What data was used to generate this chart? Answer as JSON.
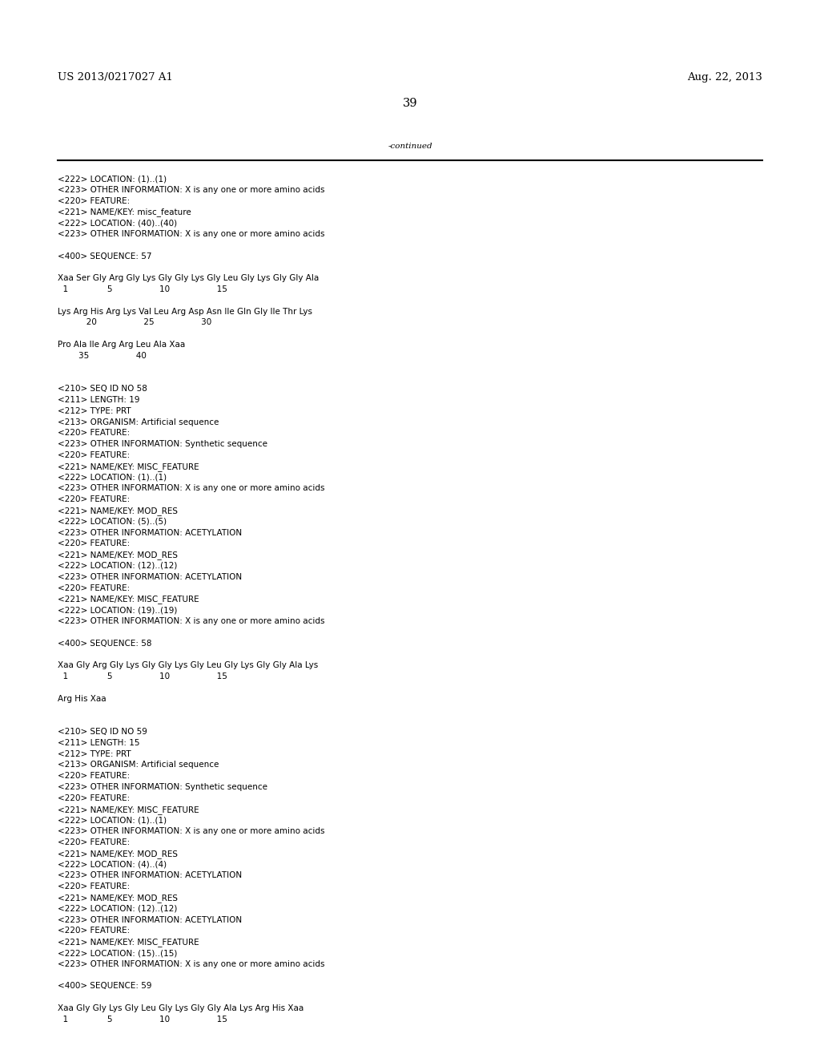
{
  "background_color": "#ffffff",
  "header_left": "US 2013/0217027 A1",
  "header_right": "Aug. 22, 2013",
  "page_number": "39",
  "continued_label": "-continued",
  "font_size_header": 9.5,
  "font_size_body": 7.5,
  "font_size_page": 10.5,
  "content_lines": [
    "<222> LOCATION: (1)..(1)",
    "<223> OTHER INFORMATION: X is any one or more amino acids",
    "<220> FEATURE:",
    "<221> NAME/KEY: misc_feature",
    "<222> LOCATION: (40)..(40)",
    "<223> OTHER INFORMATION: X is any one or more amino acids",
    "",
    "<400> SEQUENCE: 57",
    "",
    "Xaa Ser Gly Arg Gly Lys Gly Gly Lys Gly Leu Gly Lys Gly Gly Ala",
    "  1               5                  10                  15",
    "",
    "Lys Arg His Arg Lys Val Leu Arg Asp Asn Ile Gln Gly Ile Thr Lys",
    "           20                  25                  30",
    "",
    "Pro Ala Ile Arg Arg Leu Ala Xaa",
    "        35                  40",
    "",
    "",
    "<210> SEQ ID NO 58",
    "<211> LENGTH: 19",
    "<212> TYPE: PRT",
    "<213> ORGANISM: Artificial sequence",
    "<220> FEATURE:",
    "<223> OTHER INFORMATION: Synthetic sequence",
    "<220> FEATURE:",
    "<221> NAME/KEY: MISC_FEATURE",
    "<222> LOCATION: (1)..(1)",
    "<223> OTHER INFORMATION: X is any one or more amino acids",
    "<220> FEATURE:",
    "<221> NAME/KEY: MOD_RES",
    "<222> LOCATION: (5)..(5)",
    "<223> OTHER INFORMATION: ACETYLATION",
    "<220> FEATURE:",
    "<221> NAME/KEY: MOD_RES",
    "<222> LOCATION: (12)..(12)",
    "<223> OTHER INFORMATION: ACETYLATION",
    "<220> FEATURE:",
    "<221> NAME/KEY: MISC_FEATURE",
    "<222> LOCATION: (19)..(19)",
    "<223> OTHER INFORMATION: X is any one or more amino acids",
    "",
    "<400> SEQUENCE: 58",
    "",
    "Xaa Gly Arg Gly Lys Gly Gly Lys Gly Leu Gly Lys Gly Gly Ala Lys",
    "  1               5                  10                  15",
    "",
    "Arg His Xaa",
    "",
    "",
    "<210> SEQ ID NO 59",
    "<211> LENGTH: 15",
    "<212> TYPE: PRT",
    "<213> ORGANISM: Artificial sequence",
    "<220> FEATURE:",
    "<223> OTHER INFORMATION: Synthetic sequence",
    "<220> FEATURE:",
    "<221> NAME/KEY: MISC_FEATURE",
    "<222> LOCATION: (1)..(1)",
    "<223> OTHER INFORMATION: X is any one or more amino acids",
    "<220> FEATURE:",
    "<221> NAME/KEY: MOD_RES",
    "<222> LOCATION: (4)..(4)",
    "<223> OTHER INFORMATION: ACETYLATION",
    "<220> FEATURE:",
    "<221> NAME/KEY: MOD_RES",
    "<222> LOCATION: (12)..(12)",
    "<223> OTHER INFORMATION: ACETYLATION",
    "<220> FEATURE:",
    "<221> NAME/KEY: MISC_FEATURE",
    "<222> LOCATION: (15)..(15)",
    "<223> OTHER INFORMATION: X is any one or more amino acids",
    "",
    "<400> SEQUENCE: 59",
    "",
    "Xaa Gly Gly Lys Gly Leu Gly Lys Gly Gly Ala Lys Arg His Xaa",
    "  1               5                  10                  15"
  ]
}
